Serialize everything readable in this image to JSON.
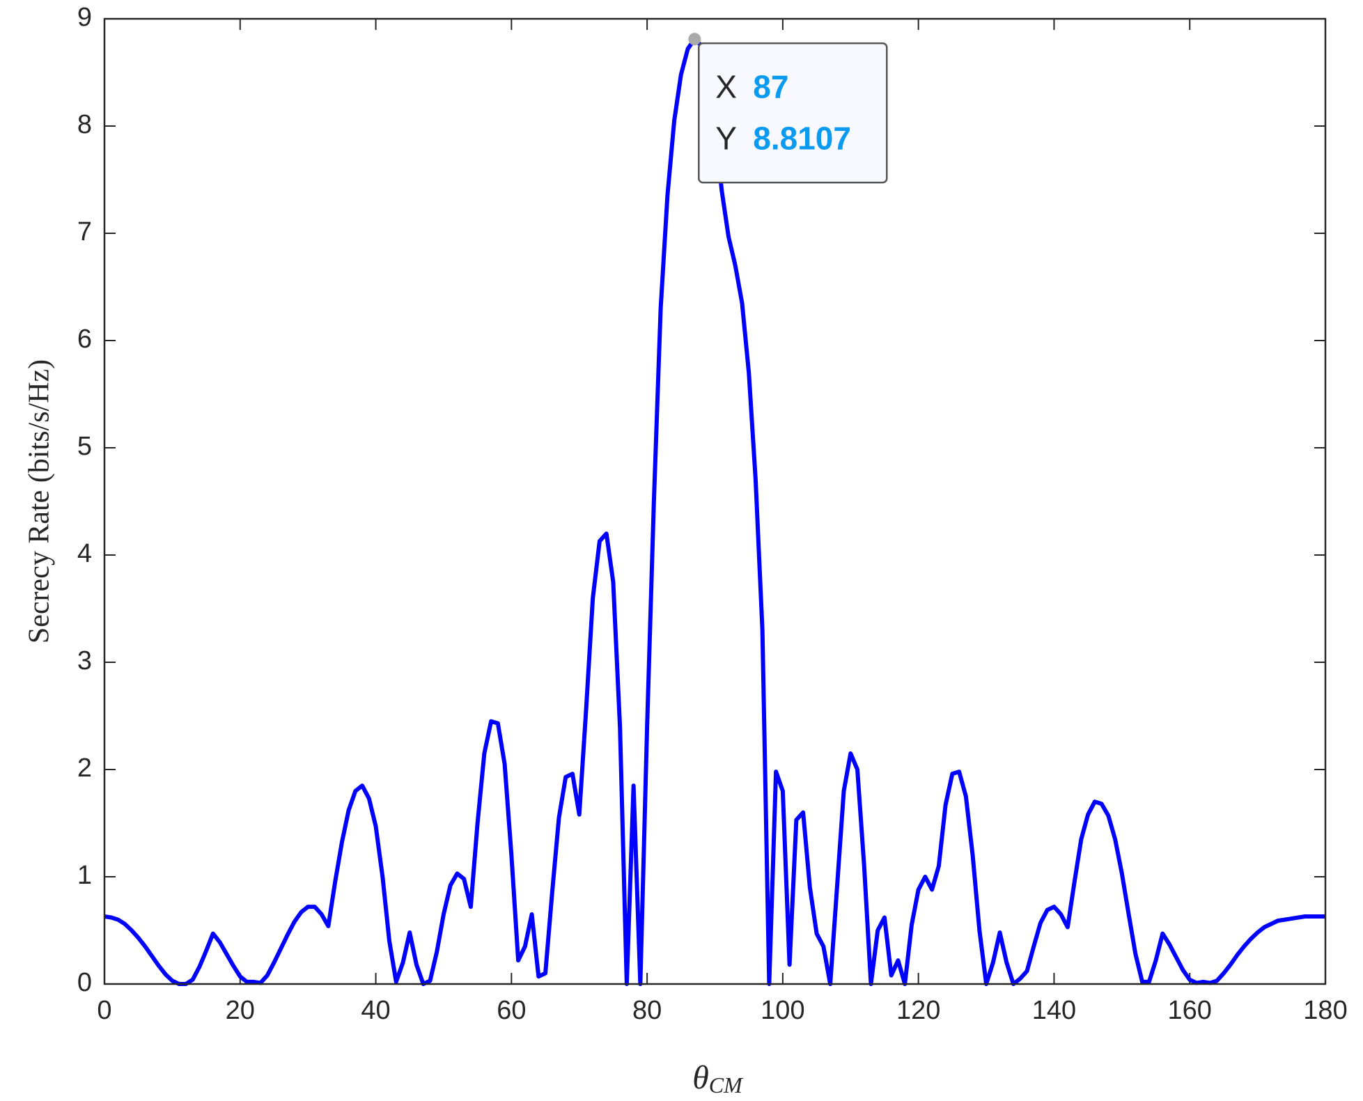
{
  "chart_data": {
    "type": "line",
    "xlabel": {
      "symbol": "θ",
      "subscript": "CM"
    },
    "ylabel": "Secrecy Rate (bits/s/Hz)",
    "x": [
      0,
      1,
      2,
      3,
      4,
      5,
      6,
      7,
      8,
      9,
      10,
      11,
      12,
      13,
      14,
      15,
      16,
      17,
      18,
      19,
      20,
      21,
      22,
      23,
      24,
      25,
      26,
      27,
      28,
      29,
      30,
      31,
      32,
      33,
      34,
      35,
      36,
      37,
      38,
      39,
      40,
      41,
      42,
      43,
      44,
      45,
      46,
      47,
      48,
      49,
      50,
      51,
      52,
      53,
      54,
      55,
      56,
      57,
      58,
      59,
      60,
      61,
      62,
      63,
      64,
      65,
      66,
      67,
      68,
      69,
      70,
      71,
      72,
      73,
      74,
      75,
      76,
      77,
      78,
      79,
      80,
      81,
      82,
      83,
      84,
      85,
      86,
      87,
      88,
      89,
      90,
      91,
      92,
      93,
      94,
      95,
      96,
      97,
      98,
      99,
      100,
      101,
      102,
      103,
      104,
      105,
      106,
      107,
      108,
      109,
      110,
      111,
      112,
      113,
      114,
      115,
      116,
      117,
      118,
      119,
      120,
      121,
      122,
      123,
      124,
      125,
      126,
      127,
      128,
      129,
      130,
      131,
      132,
      133,
      134,
      135,
      136,
      137,
      138,
      139,
      140,
      141,
      142,
      143,
      144,
      145,
      146,
      147,
      148,
      149,
      150,
      151,
      152,
      153,
      154,
      155,
      156,
      157,
      158,
      159,
      160,
      161,
      162,
      163,
      164,
      165,
      166,
      167,
      168,
      169,
      170,
      171,
      172,
      173,
      174,
      175,
      176,
      177,
      178,
      179,
      180
    ],
    "series": [
      {
        "color": "#0000ff",
        "values": [
          0.63,
          0.62,
          0.6,
          0.56,
          0.5,
          0.43,
          0.35,
          0.26,
          0.17,
          0.09,
          0.03,
          0.0,
          0.0,
          0.04,
          0.16,
          0.31,
          0.47,
          0.39,
          0.28,
          0.17,
          0.07,
          0.02,
          0.02,
          0.01,
          0.08,
          0.2,
          0.33,
          0.46,
          0.58,
          0.67,
          0.72,
          0.72,
          0.65,
          0.54,
          0.95,
          1.32,
          1.62,
          1.8,
          1.85,
          1.73,
          1.47,
          1.0,
          0.4,
          0.02,
          0.2,
          0.48,
          0.18,
          0.0,
          0.03,
          0.3,
          0.65,
          0.92,
          1.03,
          0.98,
          0.72,
          1.5,
          2.15,
          2.45,
          2.43,
          2.05,
          1.2,
          0.22,
          0.35,
          0.65,
          0.07,
          0.1,
          0.85,
          1.55,
          1.93,
          1.96,
          1.58,
          2.55,
          3.6,
          4.13,
          4.2,
          3.75,
          2.4,
          0.0,
          1.85,
          0.0,
          2.4,
          4.5,
          6.3,
          7.35,
          8.05,
          8.48,
          8.72,
          8.8107,
          8.75,
          8.5,
          8.0,
          7.4,
          6.97,
          6.7,
          6.35,
          5.7,
          4.7,
          3.3,
          0.0,
          1.98,
          1.8,
          0.18,
          1.53,
          1.6,
          0.9,
          0.47,
          0.35,
          0.0,
          0.9,
          1.8,
          2.15,
          2.0,
          1.1,
          0.0,
          0.5,
          0.62,
          0.08,
          0.22,
          0.0,
          0.55,
          0.88,
          1.0,
          0.88,
          1.1,
          1.67,
          1.96,
          1.98,
          1.75,
          1.2,
          0.5,
          0.0,
          0.2,
          0.48,
          0.2,
          0.0,
          0.05,
          0.12,
          0.35,
          0.57,
          0.69,
          0.72,
          0.65,
          0.53,
          0.95,
          1.35,
          1.58,
          1.7,
          1.68,
          1.57,
          1.35,
          1.03,
          0.65,
          0.28,
          0.02,
          0.02,
          0.22,
          0.47,
          0.37,
          0.25,
          0.13,
          0.04,
          0.01,
          0.02,
          0.01,
          0.03,
          0.1,
          0.18,
          0.27,
          0.35,
          0.42,
          0.48,
          0.53,
          0.56,
          0.59,
          0.6,
          0.61,
          0.62,
          0.63,
          0.63,
          0.63,
          0.63
        ]
      }
    ],
    "xlim": [
      0,
      180
    ],
    "xticks": [
      0,
      20,
      40,
      60,
      80,
      100,
      120,
      140,
      160,
      180
    ],
    "ylim": [
      0,
      9
    ],
    "yticks": [
      0,
      1,
      2,
      3,
      4,
      5,
      6,
      7,
      8,
      9
    ],
    "datatip": {
      "x_name": "X",
      "x": 87,
      "y_name": "Y",
      "y": 8.8107
    }
  }
}
